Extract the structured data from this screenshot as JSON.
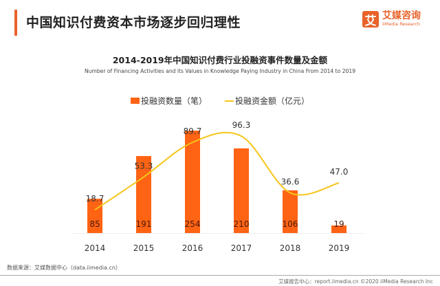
{
  "header": {
    "title": "中国知识付费资本市场逐步回归理性",
    "logo_glyph": "艾",
    "logo_cn": "艾媒咨询",
    "logo_en": "iiMedia Research"
  },
  "chart_data": {
    "type": "bar",
    "title": "2014-2019年中国知识付费行业投融资事件数量及金额",
    "subtitle": "Number of Financing Activities and its Values in Knowledge Paying Industry in China From 2014 to 2019",
    "categories": [
      "2014",
      "2015",
      "2016",
      "2017",
      "2018",
      "2019"
    ],
    "series": [
      {
        "name": "投融资数量（笔）",
        "type": "bar",
        "color": "#ff6314",
        "values": [
          85,
          191,
          254,
          210,
          106,
          19
        ]
      },
      {
        "name": "投融资金额（亿元）",
        "type": "line",
        "color": "#f5c518",
        "values": [
          18.7,
          53.3,
          89.7,
          96.3,
          36.6,
          47.0
        ]
      }
    ],
    "bar_labels": [
      "85",
      "191",
      "254",
      "210",
      "106",
      "19"
    ],
    "line_labels": [
      "18.7",
      "53.3",
      "89.7",
      "96.3",
      "36.6",
      "47.0"
    ],
    "legend_position": "top",
    "grid": false,
    "xlabel": "",
    "ylabel": ""
  },
  "footer": {
    "source": "数据来源：艾媒数据中心（data.iimedia.cn）",
    "credit": "艾媒报告中心：report.iimedia.cn ©2020  iiMedia Research Inc"
  }
}
